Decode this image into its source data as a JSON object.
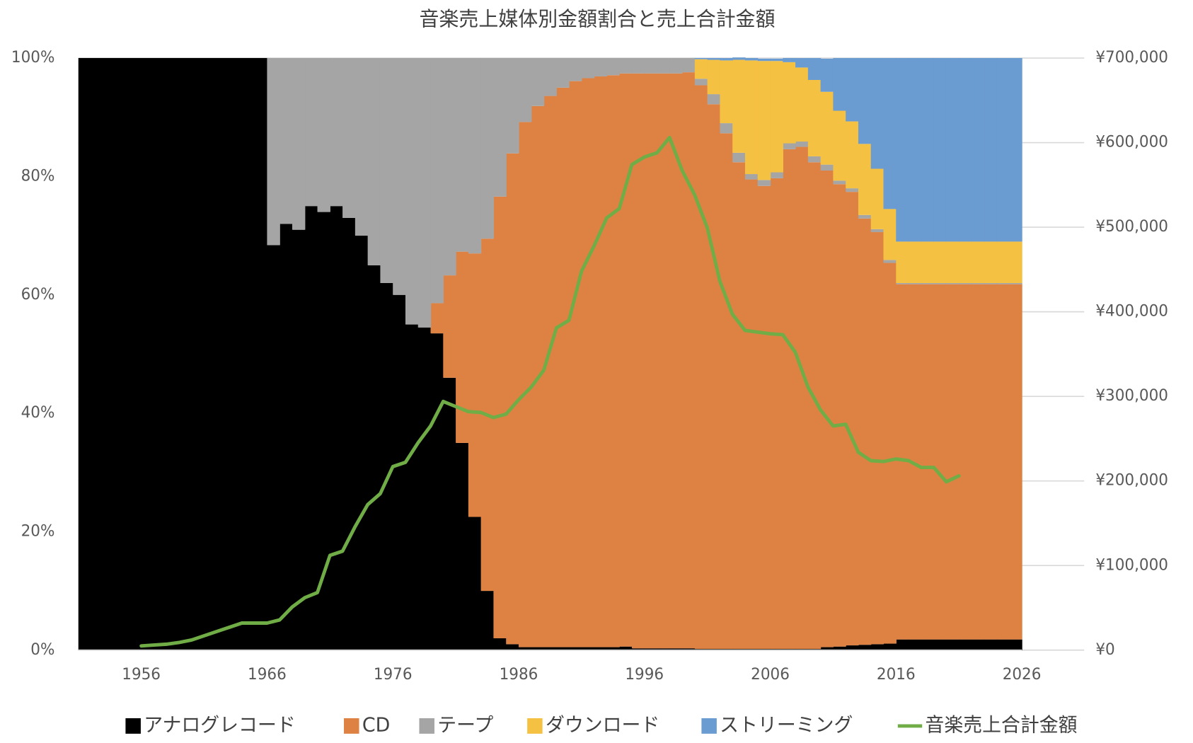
{
  "chart_data": {
    "type": "bar",
    "stacked": true,
    "title": "音楽売上媒体別金額割合と売上合計金額",
    "x": [
      1951,
      1952,
      1953,
      1954,
      1955,
      1956,
      1957,
      1958,
      1959,
      1960,
      1961,
      1962,
      1963,
      1964,
      1965,
      1966,
      1967,
      1968,
      1969,
      1970,
      1971,
      1972,
      1973,
      1974,
      1975,
      1976,
      1977,
      1978,
      1979,
      1980,
      1981,
      1982,
      1983,
      1984,
      1985,
      1986,
      1987,
      1988,
      1989,
      1990,
      1991,
      1992,
      1993,
      1994,
      1995,
      1996,
      1997,
      1998,
      1999,
      2000,
      2001,
      2002,
      2003,
      2004,
      2005,
      2006,
      2007,
      2008,
      2009,
      2010,
      2011,
      2012,
      2013,
      2014,
      2015,
      2016,
      2017,
      2018,
      2019,
      2020,
      2021,
      2022,
      2023,
      2024,
      2025
    ],
    "xlim": [
      1951,
      2026
    ],
    "xticks": [
      1956,
      1966,
      1976,
      1986,
      1996,
      2006,
      2016,
      2026
    ],
    "ylim": [
      0,
      100
    ],
    "yticks": [
      {
        "value": 0,
        "label": "0%"
      },
      {
        "value": 20,
        "label": "20%"
      },
      {
        "value": 40,
        "label": "40%"
      },
      {
        "value": 60,
        "label": "60%"
      },
      {
        "value": 80,
        "label": "80%"
      },
      {
        "value": 100,
        "label": "100%"
      }
    ],
    "y2lim": [
      0,
      700000
    ],
    "y2ticks": [
      {
        "value": 0,
        "label": "¥0"
      },
      {
        "value": 100000,
        "label": "¥100,000"
      },
      {
        "value": 200000,
        "label": "¥200,000"
      },
      {
        "value": 300000,
        "label": "¥300,000"
      },
      {
        "value": 400000,
        "label": "¥400,000"
      },
      {
        "value": 500000,
        "label": "¥500,000"
      },
      {
        "value": 600000,
        "label": "¥600,000"
      },
      {
        "value": 700000,
        "label": "¥700,000"
      }
    ],
    "grid": true,
    "legend": "bottom",
    "series": [
      {
        "name": "アナログレコード",
        "color": "#000000",
        "values": [
          100,
          100,
          100,
          100,
          100,
          100,
          100,
          100,
          100,
          100,
          100,
          100,
          100,
          100,
          100,
          68.4,
          72,
          71,
          75,
          74,
          75,
          73,
          70,
          65,
          62,
          60,
          55,
          54.5,
          53.5,
          46,
          35,
          22.5,
          10,
          2,
          1,
          0.5,
          0.5,
          0.5,
          0.5,
          0.5,
          0.5,
          0.5,
          0.5,
          0.6,
          0.3,
          0.3,
          0.3,
          0.3,
          0.3,
          0.2,
          0.2,
          0.2,
          0.2,
          0.2,
          0.2,
          0.2,
          0.2,
          0.2,
          0.2,
          0.5,
          0.6,
          0.8,
          0.9,
          1,
          1.1,
          1.8,
          1.8,
          1.8,
          1.8,
          1.8,
          1.8,
          1.8,
          1.8,
          1.8,
          1.8
        ]
      },
      {
        "name": "CD",
        "color": "#de8244",
        "values": [
          0,
          0,
          0,
          0,
          0,
          0,
          0,
          0,
          0,
          0,
          0,
          0,
          0,
          0,
          0,
          0,
          0,
          0,
          0,
          0,
          0,
          0,
          0,
          0,
          0,
          0,
          0,
          0,
          5.1,
          17.3,
          32.3,
          44.5,
          59.5,
          74.6,
          82.9,
          88.7,
          91.4,
          93.1,
          94.5,
          95.6,
          96.1,
          96.4,
          96.6,
          96.8,
          97.1,
          97.1,
          97.1,
          97.1,
          97.3,
          95.2,
          92,
          87.1,
          82.2,
          79.3,
          78.2,
          79.5,
          84.4,
          84.8,
          82.2,
          80.5,
          78.1,
          76.6,
          72,
          69.6,
          64.3,
          60,
          60,
          60,
          60,
          60,
          60,
          60,
          60,
          60,
          60
        ]
      },
      {
        "name": "テープ",
        "color": "#a5a5a5",
        "values": [
          0,
          0,
          0,
          0,
          0,
          0,
          0,
          0,
          0,
          0,
          0,
          0,
          0,
          0,
          0,
          31.6,
          28,
          29,
          25,
          26,
          25,
          27,
          30,
          35,
          38,
          40,
          45,
          45.5,
          41.4,
          36.7,
          32.7,
          33,
          30.5,
          23.4,
          16.1,
          10.8,
          8.1,
          6.4,
          5,
          3.9,
          3.4,
          3.1,
          2.9,
          2.6,
          2.6,
          2.6,
          2.6,
          2.6,
          2.4,
          1.1,
          1.7,
          1.7,
          1.6,
          0.9,
          1,
          1,
          1,
          0.9,
          1,
          1,
          0.6,
          0.6,
          0.6,
          0.5,
          0.5,
          0.2,
          0.2,
          0.2,
          0.2,
          0.2,
          0.2,
          0.2,
          0.2,
          0.2,
          0.2
        ]
      },
      {
        "name": "ダウンロード",
        "color": "#f5c142",
        "values": [
          0,
          0,
          0,
          0,
          0,
          0,
          0,
          0,
          0,
          0,
          0,
          0,
          0,
          0,
          0,
          0,
          0,
          0,
          0,
          0,
          0,
          0,
          0,
          0,
          0,
          0,
          0,
          0,
          0,
          0,
          0,
          0,
          0,
          0,
          0,
          0,
          0,
          0,
          0,
          0,
          0,
          0,
          0,
          0,
          0,
          0,
          0,
          0,
          0,
          3.3,
          5.8,
          10.6,
          15.7,
          19.2,
          20.1,
          18.8,
          13.7,
          12.5,
          12.9,
          12.3,
          11.8,
          11.3,
          12,
          10.2,
          8.6,
          7,
          7,
          7,
          7,
          7,
          7,
          7,
          7,
          7,
          7
        ]
      },
      {
        "name": "ストリーミング",
        "color": "#6a9bd1",
        "values": [
          0,
          0,
          0,
          0,
          0,
          0,
          0,
          0,
          0,
          0,
          0,
          0,
          0,
          0,
          0,
          0,
          0,
          0,
          0,
          0,
          0,
          0,
          0,
          0,
          0,
          0,
          0,
          0,
          0,
          0,
          0,
          0,
          0,
          0,
          0,
          0,
          0,
          0,
          0,
          0,
          0,
          0,
          0,
          0,
          0,
          0,
          0,
          0,
          0,
          0.2,
          0.3,
          0.4,
          0.4,
          0.4,
          0.4,
          0.4,
          0.7,
          1.6,
          3.7,
          5.6,
          8.9,
          10.7,
          14.5,
          18.7,
          25.5,
          31,
          31,
          31,
          31,
          31,
          31,
          31,
          31,
          31,
          31
        ]
      },
      {
        "name": "音楽売上合計金額",
        "color": "#70ad47",
        "type": "line",
        "axis": "y2",
        "values": [
          null,
          null,
          null,
          null,
          null,
          5000,
          6000,
          7000,
          9000,
          12000,
          17000,
          22000,
          27000,
          32000,
          32000,
          32000,
          35700,
          51000,
          62000,
          68000,
          112000,
          117000,
          146000,
          172000,
          185000,
          217000,
          222000,
          245000,
          265000,
          294000,
          288000,
          282000,
          281000,
          275000,
          279000,
          296000,
          311000,
          331000,
          381000,
          390000,
          448000,
          478000,
          511000,
          522000,
          574000,
          583000,
          588000,
          606000,
          567000,
          538000,
          499000,
          436000,
          397000,
          378000,
          376000,
          374000,
          373000,
          352000,
          311000,
          284000,
          265000,
          267000,
          234000,
          224000,
          223000,
          226000,
          224000,
          216000,
          216000,
          199000,
          206000,
          null,
          null,
          null,
          null
        ]
      }
    ]
  }
}
